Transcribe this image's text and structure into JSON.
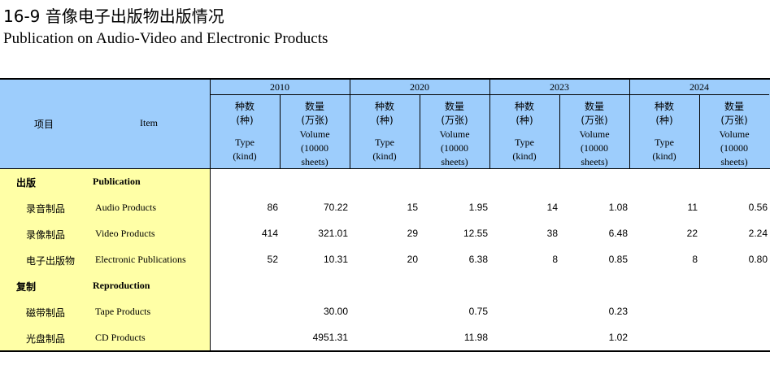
{
  "header": {
    "title": "16-9  音像电子出版物出版情况",
    "subtitle": "Publication on Audio-Video and Electronic Products"
  },
  "table": {
    "item_cn": "项目",
    "item_en": "Item",
    "years": [
      "2010",
      "2020",
      "2023",
      "2024"
    ],
    "subheaders": [
      {
        "lines": [
          "种数",
          "(种)",
          "Type",
          "(kind)"
        ]
      },
      {
        "lines": [
          "数量",
          "(万张)",
          "Volume",
          "(10000",
          "sheets)"
        ]
      }
    ],
    "rows": [
      {
        "cn": "出版",
        "en": "Publication",
        "section": true,
        "cells": [
          null,
          null,
          null,
          null,
          null,
          null,
          null,
          null
        ]
      },
      {
        "cn": "录音制品",
        "en": "Audio Products",
        "section": false,
        "cells": [
          "86",
          "70.22",
          "15",
          "1.95",
          "14",
          "1.08",
          "11",
          "0.56"
        ]
      },
      {
        "cn": "录像制品",
        "en": "Video Products",
        "section": false,
        "cells": [
          "414",
          "321.01",
          "29",
          "12.55",
          "38",
          "6.48",
          "22",
          "2.24"
        ]
      },
      {
        "cn": "电子出版物",
        "en": "Electronic Publications",
        "section": false,
        "cells": [
          "52",
          "10.31",
          "20",
          "6.38",
          "8",
          "0.85",
          "8",
          "0.80"
        ]
      },
      {
        "cn": "复制",
        "en": "Reproduction",
        "section": true,
        "cells": [
          null,
          null,
          null,
          null,
          null,
          null,
          null,
          null
        ]
      },
      {
        "cn": "磁带制品",
        "en": "Tape Products",
        "section": false,
        "cells": [
          null,
          "30.00",
          null,
          "0.75",
          null,
          "0.23",
          null,
          null
        ]
      },
      {
        "cn": "光盘制品",
        "en": "CD Products",
        "section": false,
        "cells": [
          null,
          "4951.31",
          null,
          "11.98",
          null,
          "1.02",
          null,
          null
        ]
      }
    ]
  }
}
